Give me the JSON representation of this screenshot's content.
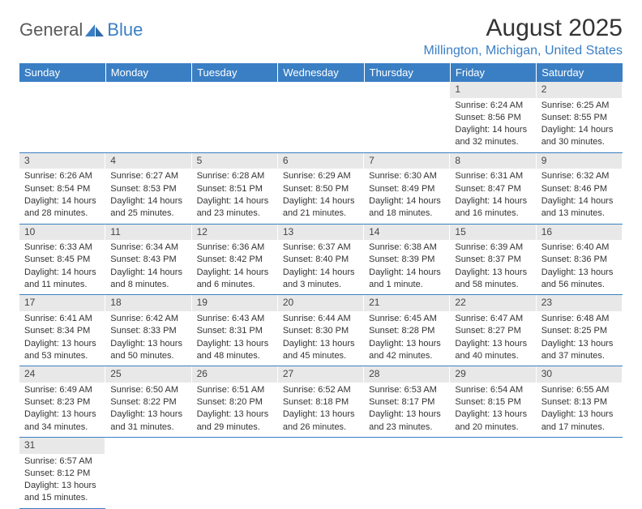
{
  "logo": {
    "part1": "General",
    "part2": "Blue"
  },
  "title": "August 2025",
  "location": "Millington, Michigan, United States",
  "weekdays": [
    "Sunday",
    "Monday",
    "Tuesday",
    "Wednesday",
    "Thursday",
    "Friday",
    "Saturday"
  ],
  "colors": {
    "header_bg": "#3a7fc4",
    "header_text": "#ffffff",
    "daynum_bg": "#e8e8e8",
    "accent": "#3a7fc4",
    "text": "#333333"
  },
  "weeks": [
    [
      null,
      null,
      null,
      null,
      null,
      {
        "n": "1",
        "sunrise": "Sunrise: 6:24 AM",
        "sunset": "Sunset: 8:56 PM",
        "daylight1": "Daylight: 14 hours",
        "daylight2": "and 32 minutes."
      },
      {
        "n": "2",
        "sunrise": "Sunrise: 6:25 AM",
        "sunset": "Sunset: 8:55 PM",
        "daylight1": "Daylight: 14 hours",
        "daylight2": "and 30 minutes."
      }
    ],
    [
      {
        "n": "3",
        "sunrise": "Sunrise: 6:26 AM",
        "sunset": "Sunset: 8:54 PM",
        "daylight1": "Daylight: 14 hours",
        "daylight2": "and 28 minutes."
      },
      {
        "n": "4",
        "sunrise": "Sunrise: 6:27 AM",
        "sunset": "Sunset: 8:53 PM",
        "daylight1": "Daylight: 14 hours",
        "daylight2": "and 25 minutes."
      },
      {
        "n": "5",
        "sunrise": "Sunrise: 6:28 AM",
        "sunset": "Sunset: 8:51 PM",
        "daylight1": "Daylight: 14 hours",
        "daylight2": "and 23 minutes."
      },
      {
        "n": "6",
        "sunrise": "Sunrise: 6:29 AM",
        "sunset": "Sunset: 8:50 PM",
        "daylight1": "Daylight: 14 hours",
        "daylight2": "and 21 minutes."
      },
      {
        "n": "7",
        "sunrise": "Sunrise: 6:30 AM",
        "sunset": "Sunset: 8:49 PM",
        "daylight1": "Daylight: 14 hours",
        "daylight2": "and 18 minutes."
      },
      {
        "n": "8",
        "sunrise": "Sunrise: 6:31 AM",
        "sunset": "Sunset: 8:47 PM",
        "daylight1": "Daylight: 14 hours",
        "daylight2": "and 16 minutes."
      },
      {
        "n": "9",
        "sunrise": "Sunrise: 6:32 AM",
        "sunset": "Sunset: 8:46 PM",
        "daylight1": "Daylight: 14 hours",
        "daylight2": "and 13 minutes."
      }
    ],
    [
      {
        "n": "10",
        "sunrise": "Sunrise: 6:33 AM",
        "sunset": "Sunset: 8:45 PM",
        "daylight1": "Daylight: 14 hours",
        "daylight2": "and 11 minutes."
      },
      {
        "n": "11",
        "sunrise": "Sunrise: 6:34 AM",
        "sunset": "Sunset: 8:43 PM",
        "daylight1": "Daylight: 14 hours",
        "daylight2": "and 8 minutes."
      },
      {
        "n": "12",
        "sunrise": "Sunrise: 6:36 AM",
        "sunset": "Sunset: 8:42 PM",
        "daylight1": "Daylight: 14 hours",
        "daylight2": "and 6 minutes."
      },
      {
        "n": "13",
        "sunrise": "Sunrise: 6:37 AM",
        "sunset": "Sunset: 8:40 PM",
        "daylight1": "Daylight: 14 hours",
        "daylight2": "and 3 minutes."
      },
      {
        "n": "14",
        "sunrise": "Sunrise: 6:38 AM",
        "sunset": "Sunset: 8:39 PM",
        "daylight1": "Daylight: 14 hours",
        "daylight2": "and 1 minute."
      },
      {
        "n": "15",
        "sunrise": "Sunrise: 6:39 AM",
        "sunset": "Sunset: 8:37 PM",
        "daylight1": "Daylight: 13 hours",
        "daylight2": "and 58 minutes."
      },
      {
        "n": "16",
        "sunrise": "Sunrise: 6:40 AM",
        "sunset": "Sunset: 8:36 PM",
        "daylight1": "Daylight: 13 hours",
        "daylight2": "and 56 minutes."
      }
    ],
    [
      {
        "n": "17",
        "sunrise": "Sunrise: 6:41 AM",
        "sunset": "Sunset: 8:34 PM",
        "daylight1": "Daylight: 13 hours",
        "daylight2": "and 53 minutes."
      },
      {
        "n": "18",
        "sunrise": "Sunrise: 6:42 AM",
        "sunset": "Sunset: 8:33 PM",
        "daylight1": "Daylight: 13 hours",
        "daylight2": "and 50 minutes."
      },
      {
        "n": "19",
        "sunrise": "Sunrise: 6:43 AM",
        "sunset": "Sunset: 8:31 PM",
        "daylight1": "Daylight: 13 hours",
        "daylight2": "and 48 minutes."
      },
      {
        "n": "20",
        "sunrise": "Sunrise: 6:44 AM",
        "sunset": "Sunset: 8:30 PM",
        "daylight1": "Daylight: 13 hours",
        "daylight2": "and 45 minutes."
      },
      {
        "n": "21",
        "sunrise": "Sunrise: 6:45 AM",
        "sunset": "Sunset: 8:28 PM",
        "daylight1": "Daylight: 13 hours",
        "daylight2": "and 42 minutes."
      },
      {
        "n": "22",
        "sunrise": "Sunrise: 6:47 AM",
        "sunset": "Sunset: 8:27 PM",
        "daylight1": "Daylight: 13 hours",
        "daylight2": "and 40 minutes."
      },
      {
        "n": "23",
        "sunrise": "Sunrise: 6:48 AM",
        "sunset": "Sunset: 8:25 PM",
        "daylight1": "Daylight: 13 hours",
        "daylight2": "and 37 minutes."
      }
    ],
    [
      {
        "n": "24",
        "sunrise": "Sunrise: 6:49 AM",
        "sunset": "Sunset: 8:23 PM",
        "daylight1": "Daylight: 13 hours",
        "daylight2": "and 34 minutes."
      },
      {
        "n": "25",
        "sunrise": "Sunrise: 6:50 AM",
        "sunset": "Sunset: 8:22 PM",
        "daylight1": "Daylight: 13 hours",
        "daylight2": "and 31 minutes."
      },
      {
        "n": "26",
        "sunrise": "Sunrise: 6:51 AM",
        "sunset": "Sunset: 8:20 PM",
        "daylight1": "Daylight: 13 hours",
        "daylight2": "and 29 minutes."
      },
      {
        "n": "27",
        "sunrise": "Sunrise: 6:52 AM",
        "sunset": "Sunset: 8:18 PM",
        "daylight1": "Daylight: 13 hours",
        "daylight2": "and 26 minutes."
      },
      {
        "n": "28",
        "sunrise": "Sunrise: 6:53 AM",
        "sunset": "Sunset: 8:17 PM",
        "daylight1": "Daylight: 13 hours",
        "daylight2": "and 23 minutes."
      },
      {
        "n": "29",
        "sunrise": "Sunrise: 6:54 AM",
        "sunset": "Sunset: 8:15 PM",
        "daylight1": "Daylight: 13 hours",
        "daylight2": "and 20 minutes."
      },
      {
        "n": "30",
        "sunrise": "Sunrise: 6:55 AM",
        "sunset": "Sunset: 8:13 PM",
        "daylight1": "Daylight: 13 hours",
        "daylight2": "and 17 minutes."
      }
    ],
    [
      {
        "n": "31",
        "sunrise": "Sunrise: 6:57 AM",
        "sunset": "Sunset: 8:12 PM",
        "daylight1": "Daylight: 13 hours",
        "daylight2": "and 15 minutes."
      },
      null,
      null,
      null,
      null,
      null,
      null
    ]
  ]
}
